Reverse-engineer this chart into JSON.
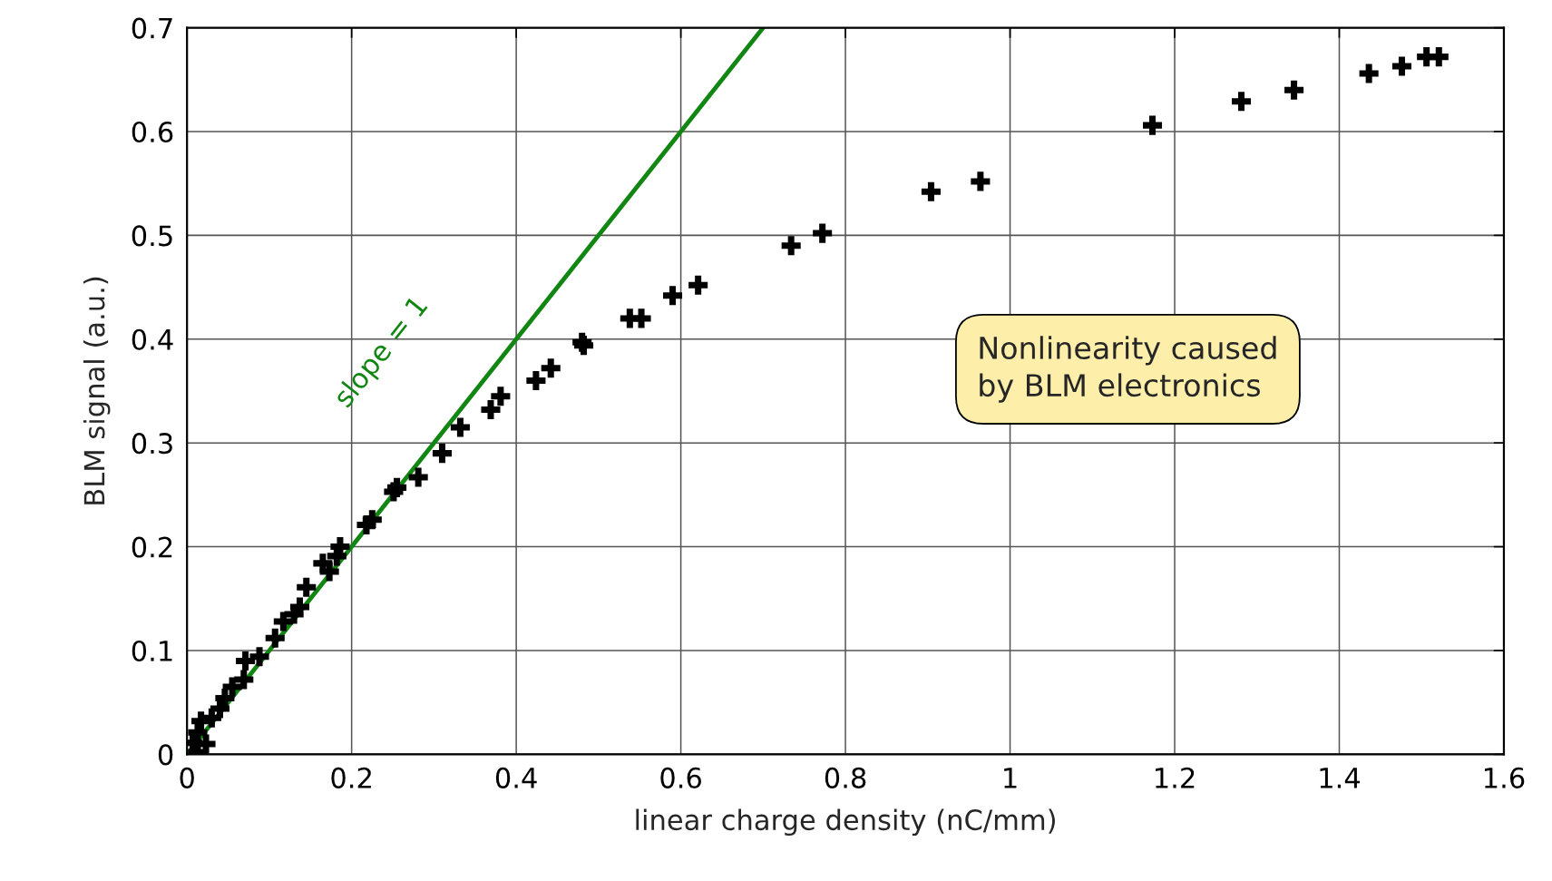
{
  "chart_data": {
    "type": "scatter",
    "xlabel": "linear charge density (nC/mm)",
    "ylabel": "BLM signal (a.u.)",
    "xlim": [
      0,
      1.6
    ],
    "ylim": [
      0,
      0.7
    ],
    "xticks": [
      0,
      0.2,
      0.4,
      0.6,
      0.8,
      1,
      1.2,
      1.4,
      1.6
    ],
    "yticks": [
      0,
      0.1,
      0.2,
      0.3,
      0.4,
      0.5,
      0.6,
      0.7
    ],
    "grid": true,
    "marker": "cross",
    "series": [
      {
        "color": "#000000",
        "x": [
          0.007,
          0.013,
          0.013,
          0.017,
          0.023,
          0.03,
          0.04,
          0.046,
          0.055,
          0.069,
          0.071,
          0.088,
          0.107,
          0.117,
          0.13,
          0.137,
          0.145,
          0.165,
          0.173,
          0.182,
          0.186,
          0.218,
          0.225,
          0.251,
          0.255,
          0.281,
          0.31,
          0.332,
          0.369,
          0.381,
          0.424,
          0.442,
          0.48,
          0.482,
          0.538,
          0.552,
          0.59,
          0.621,
          0.734,
          0.772,
          0.904,
          0.964,
          1.173,
          1.281,
          1.345,
          1.436,
          1.476,
          1.506,
          1.521
        ],
        "values": [
          0.011,
          0.021,
          0.002,
          0.032,
          0.01,
          0.035,
          0.044,
          0.054,
          0.065,
          0.072,
          0.09,
          0.094,
          0.112,
          0.128,
          0.135,
          0.142,
          0.161,
          0.184,
          0.176,
          0.191,
          0.2,
          0.221,
          0.226,
          0.253,
          0.257,
          0.267,
          0.29,
          0.315,
          0.332,
          0.345,
          0.36,
          0.372,
          0.397,
          0.394,
          0.42,
          0.42,
          0.442,
          0.452,
          0.49,
          0.502,
          0.542,
          0.552,
          0.606,
          0.629,
          0.64,
          0.656,
          0.663,
          0.672,
          0.672
        ]
      },
      {
        "type": "line",
        "marker": "none",
        "color": "#128612",
        "x": [
          0,
          0.7
        ],
        "values": [
          0,
          0.7
        ]
      }
    ],
    "annotations": [
      "slope = 1",
      "Nonlinearity caused\nby BLM electronics"
    ]
  }
}
